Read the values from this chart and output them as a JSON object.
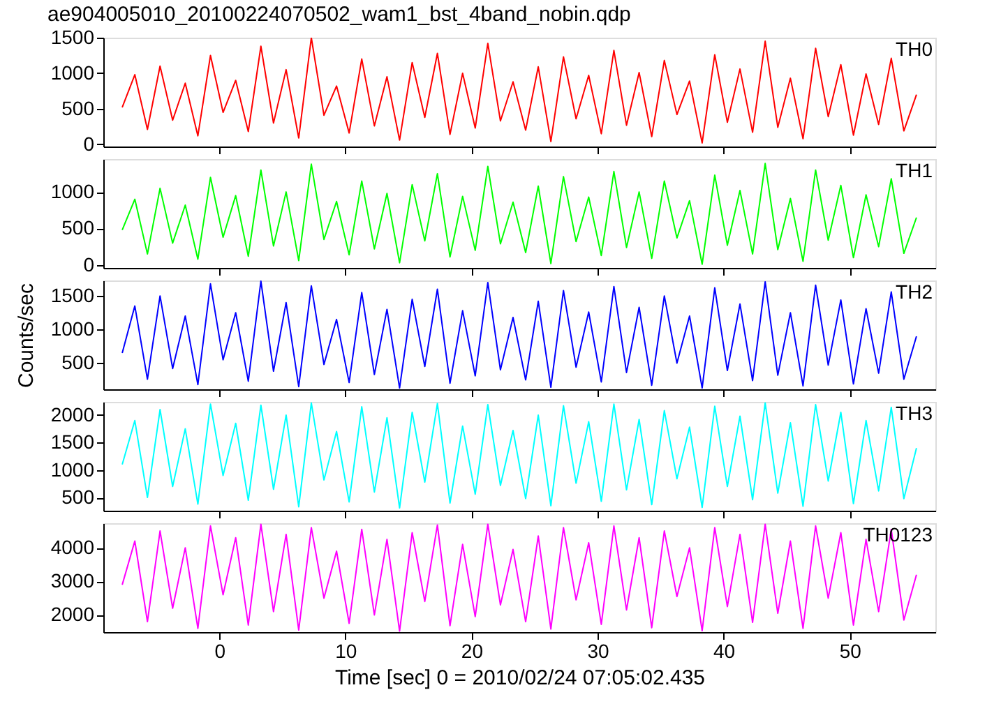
{
  "chart_data": [
    {
      "type": "line",
      "title": "ae904005010_20100224070502_wam1_bst_4band_nobin.qdp",
      "annotations": [
        "TH0"
      ],
      "grid": false,
      "tick_labels": "y",
      "xlim": [
        -9.2,
        56.8
      ],
      "xticks": [
        0,
        10,
        20,
        30,
        40,
        50
      ],
      "ylim": [
        -30,
        1500
      ],
      "yticks": [
        0,
        500,
        1000,
        1500
      ],
      "x": [
        -7.7,
        -6.7,
        -5.7,
        -4.7,
        -3.7,
        -2.7,
        -1.7,
        -0.7,
        0.3,
        1.3,
        2.3,
        3.3,
        4.3,
        5.3,
        6.3,
        7.3,
        8.3,
        9.3,
        10.3,
        11.3,
        12.3,
        13.3,
        14.3,
        15.3,
        16.3,
        17.3,
        18.3,
        19.3,
        20.3,
        21.3,
        22.3,
        23.3,
        24.3,
        25.3,
        26.3,
        27.3,
        28.3,
        29.3,
        30.3,
        31.3,
        32.3,
        33.3,
        34.3,
        35.3,
        36.3,
        37.3,
        38.3,
        39.3,
        40.3,
        41.3,
        42.3,
        43.3,
        44.3,
        45.3,
        46.3,
        47.3,
        48.3,
        49.3,
        50.3,
        51.3,
        52.3,
        53.3,
        54.3,
        55.3
      ],
      "series": [
        {
          "color": "#ff0000",
          "values": [
            520,
            980,
            210,
            1100,
            340,
            860,
            120,
            1250,
            450,
            900,
            180,
            1380,
            300,
            1050,
            90,
            1500,
            410,
            820,
            160,
            1200,
            260,
            950,
            60,
            1150,
            380,
            1280,
            140,
            1000,
            230,
            1420,
            330,
            880,
            200,
            1090,
            40,
            1230,
            360,
            970,
            150,
            1320,
            270,
            1010,
            110,
            1180,
            420,
            890,
            20,
            1260,
            310,
            1060,
            170,
            1450,
            240,
            930,
            80,
            1350,
            390,
            1120,
            130,
            990,
            280,
            1210,
            190,
            700
          ]
        }
      ]
    },
    {
      "type": "line",
      "annotations": [
        "TH1"
      ],
      "grid": false,
      "tick_labels": "y",
      "xlim": [
        -9.2,
        56.8
      ],
      "xticks": [
        0,
        10,
        20,
        30,
        40,
        50
      ],
      "ylim": [
        -40,
        1450
      ],
      "yticks": [
        0,
        500,
        1000
      ],
      "x": [
        -7.7,
        -6.7,
        -5.7,
        -4.7,
        -3.7,
        -2.7,
        -1.7,
        -0.7,
        0.3,
        1.3,
        2.3,
        3.3,
        4.3,
        5.3,
        6.3,
        7.3,
        8.3,
        9.3,
        10.3,
        11.3,
        12.3,
        13.3,
        14.3,
        15.3,
        16.3,
        17.3,
        18.3,
        19.3,
        20.3,
        21.3,
        22.3,
        23.3,
        24.3,
        25.3,
        26.3,
        27.3,
        28.3,
        29.3,
        30.3,
        31.3,
        32.3,
        33.3,
        34.3,
        35.3,
        36.3,
        37.3,
        38.3,
        39.3,
        40.3,
        41.3,
        42.3,
        43.3,
        44.3,
        45.3,
        46.3,
        47.3,
        48.3,
        49.3,
        50.3,
        51.3,
        52.3,
        53.3,
        54.3,
        55.3
      ],
      "series": [
        {
          "color": "#00ff00",
          "values": [
            480,
            900,
            150,
            1050,
            300,
            820,
            80,
            1200,
            380,
            950,
            120,
            1300,
            260,
            1000,
            60,
            1380,
            350,
            870,
            140,
            1150,
            220,
            980,
            30,
            1100,
            330,
            1250,
            110,
            940,
            200,
            1350,
            290,
            860,
            170,
            1080,
            20,
            1210,
            320,
            930,
            130,
            1280,
            240,
            1000,
            90,
            1150,
            370,
            880,
            10,
            1230,
            270,
            1020,
            150,
            1390,
            210,
            910,
            50,
            1300,
            340,
            1090,
            100,
            960,
            250,
            1180,
            160,
            650
          ]
        }
      ]
    },
    {
      "type": "line",
      "ylabel": "Counts/sec",
      "annotations": [
        "TH2"
      ],
      "grid": false,
      "tick_labels": "y",
      "xlim": [
        -9.2,
        56.8
      ],
      "xticks": [
        0,
        10,
        20,
        30,
        40,
        50
      ],
      "ylim": [
        110,
        1730
      ],
      "yticks": [
        500,
        1000,
        1500
      ],
      "x": [
        -7.7,
        -6.7,
        -5.7,
        -4.7,
        -3.7,
        -2.7,
        -1.7,
        -0.7,
        0.3,
        1.3,
        2.3,
        3.3,
        4.3,
        5.3,
        6.3,
        7.3,
        8.3,
        9.3,
        10.3,
        11.3,
        12.3,
        13.3,
        14.3,
        15.3,
        16.3,
        17.3,
        18.3,
        19.3,
        20.3,
        21.3,
        22.3,
        23.3,
        24.3,
        25.3,
        26.3,
        27.3,
        28.3,
        29.3,
        30.3,
        31.3,
        32.3,
        33.3,
        34.3,
        35.3,
        36.3,
        37.3,
        38.3,
        39.3,
        40.3,
        41.3,
        42.3,
        43.3,
        44.3,
        45.3,
        46.3,
        47.3,
        48.3,
        49.3,
        50.3,
        51.3,
        52.3,
        53.3,
        54.3,
        55.3
      ],
      "series": [
        {
          "color": "#0000ff",
          "values": [
            650,
            1350,
            260,
            1500,
            420,
            1200,
            180,
            1680,
            550,
            1250,
            230,
            1720,
            380,
            1400,
            150,
            1650,
            480,
            1150,
            210,
            1550,
            330,
            1300,
            130,
            1450,
            450,
            1600,
            200,
            1280,
            310,
            1700,
            400,
            1180,
            250,
            1420,
            140,
            1580,
            440,
            1260,
            220,
            1640,
            360,
            1330,
            170,
            1500,
            500,
            1200,
            130,
            1620,
            390,
            1380,
            240,
            1710,
            320,
            1250,
            160,
            1660,
            470,
            1440,
            190,
            1310,
            350,
            1560,
            260,
            900
          ]
        }
      ]
    },
    {
      "type": "line",
      "annotations": [
        "TH3"
      ],
      "grid": false,
      "tick_labels": "y",
      "xlim": [
        -9.2,
        56.8
      ],
      "xticks": [
        0,
        10,
        20,
        30,
        40,
        50
      ],
      "ylim": [
        260,
        2240
      ],
      "yticks": [
        500,
        1000,
        1500,
        2000
      ],
      "x": [
        -7.7,
        -6.7,
        -5.7,
        -4.7,
        -3.7,
        -2.7,
        -1.7,
        -0.7,
        0.3,
        1.3,
        2.3,
        3.3,
        4.3,
        5.3,
        6.3,
        7.3,
        8.3,
        9.3,
        10.3,
        11.3,
        12.3,
        13.3,
        14.3,
        15.3,
        16.3,
        17.3,
        18.3,
        19.3,
        20.3,
        21.3,
        22.3,
        23.3,
        24.3,
        25.3,
        26.3,
        27.3,
        28.3,
        29.3,
        30.3,
        31.3,
        32.3,
        33.3,
        34.3,
        35.3,
        36.3,
        37.3,
        38.3,
        39.3,
        40.3,
        41.3,
        42.3,
        43.3,
        44.3,
        45.3,
        46.3,
        47.3,
        48.3,
        49.3,
        50.3,
        51.3,
        52.3,
        53.3,
        54.3,
        55.3
      ],
      "series": [
        {
          "color": "#00ffff",
          "values": [
            1100,
            1900,
            500,
            2100,
            700,
            1750,
            380,
            2200,
            900,
            1850,
            450,
            2180,
            650,
            2000,
            330,
            2220,
            820,
            1700,
            420,
            2150,
            600,
            1950,
            310,
            2050,
            780,
            2210,
            400,
            1800,
            560,
            2190,
            720,
            1720,
            480,
            2000,
            350,
            2170,
            760,
            1880,
            430,
            2200,
            640,
            1920,
            370,
            2080,
            840,
            1780,
            320,
            2160,
            700,
            1980,
            460,
            2220,
            580,
            1860,
            340,
            2190,
            800,
            2050,
            390,
            1900,
            620,
            2140,
            480,
            1400
          ]
        }
      ]
    },
    {
      "type": "line",
      "xlabel": "Time [sec] 0 = 2010/02/24 07:05:02.435",
      "annotations": [
        "TH0123"
      ],
      "grid": false,
      "xlim": [
        -9.2,
        56.8
      ],
      "xticks": [
        0,
        10,
        20,
        30,
        40,
        50
      ],
      "ylim": [
        1490,
        4730
      ],
      "yticks": [
        2000,
        3000,
        4000
      ],
      "x": [
        -7.7,
        -6.7,
        -5.7,
        -4.7,
        -3.7,
        -2.7,
        -1.7,
        -0.7,
        0.3,
        1.3,
        2.3,
        3.3,
        4.3,
        5.3,
        6.3,
        7.3,
        8.3,
        9.3,
        10.3,
        11.3,
        12.3,
        13.3,
        14.3,
        15.3,
        16.3,
        17.3,
        18.3,
        19.3,
        20.3,
        21.3,
        22.3,
        23.3,
        24.3,
        25.3,
        26.3,
        27.3,
        28.3,
        29.3,
        30.3,
        31.3,
        32.3,
        33.3,
        34.3,
        35.3,
        36.3,
        37.3,
        38.3,
        39.3,
        40.3,
        41.3,
        42.3,
        43.3,
        44.3,
        45.3,
        46.3,
        47.3,
        48.3,
        49.3,
        50.3,
        51.3,
        52.3,
        53.3,
        54.3,
        55.3
      ],
      "series": [
        {
          "color": "#ff00ff",
          "values": [
            2900,
            4200,
            1800,
            4500,
            2200,
            4000,
            1600,
            4650,
            2600,
            4300,
            1700,
            4700,
            2100,
            4400,
            1550,
            4600,
            2500,
            3900,
            1750,
            4550,
            2000,
            4250,
            1520,
            4450,
            2400,
            4680,
            1680,
            4100,
            1950,
            4700,
            2300,
            3950,
            1800,
            4350,
            1580,
            4600,
            2450,
            4150,
            1720,
            4650,
            2150,
            4300,
            1620,
            4500,
            2550,
            4000,
            1530,
            4600,
            2250,
            4400,
            1780,
            4700,
            2050,
            4200,
            1600,
            4650,
            2500,
            4450,
            1700,
            4250,
            2100,
            4550,
            1850,
            3200
          ]
        }
      ]
    }
  ]
}
